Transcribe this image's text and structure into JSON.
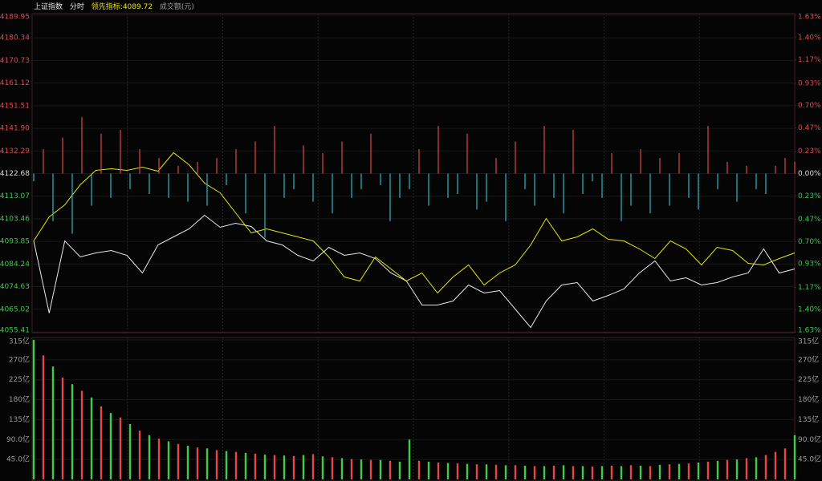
{
  "header": {
    "title": "上证指数",
    "mode": "分时",
    "indicator_label": "领先指标:",
    "indicator_value": 4089.72,
    "volume_label": "成交额(元)"
  },
  "chart_data": [
    {
      "type": "line",
      "ylim": [
        4055.41,
        4189.95
      ],
      "yticks": [
        4189.95,
        4180.34,
        4170.73,
        4161.12,
        4151.51,
        {
          "value": 4141.9,
          "label": "4141.90"
        },
        4132.29,
        4122.68,
        4113.07,
        4103.46,
        4093.85,
        4084.24,
        4074.63,
        4065.02,
        4055.41
      ],
      "y2lim": [
        -1.63,
        1.63
      ],
      "y2ticks": [
        {
          "value": 1.63,
          "label": "1.63%"
        },
        {
          "value": 1.4,
          "label": "1.40%"
        },
        {
          "value": 1.17,
          "label": "1.17%"
        },
        {
          "value": 0.93,
          "label": "0.93%"
        },
        {
          "value": 0.7,
          "label": "0.70%"
        },
        {
          "value": 0.47,
          "label": "0.47%"
        },
        {
          "value": 0.23,
          "label": "0.23%"
        },
        {
          "value": 0,
          "label": "0.00%"
        },
        {
          "value": -0.23,
          "label": "0.23%"
        },
        {
          "value": -0.47,
          "label": "0.47%"
        },
        {
          "value": -0.7,
          "label": "0.70%"
        },
        {
          "value": -0.93,
          "label": "0.93%"
        },
        {
          "value": -1.17,
          "label": "1.17%"
        },
        {
          "value": -1.4,
          "label": "1.40%"
        },
        {
          "value": -1.63,
          "label": "1.63%"
        }
      ],
      "grid": true,
      "up_color": "#e04848",
      "down_color": "#2fb8c2",
      "series": [
        {
          "color": "#e8e8e8",
          "values": [
            4094.07,
            4063.42,
            4094.07,
            4087.26,
            4088.96,
            4089.98,
            4087.94,
            4080.45,
            4092.37,
            4095.77,
            4099.18,
            4104.97,
            4099.86,
            4101.56,
            4100.2,
            4094.07,
            4092.37,
            4087.94,
            4085.55,
            4091.34,
            4087.94,
            4088.96,
            4086.58,
            4080.45,
            4077.04,
            4066.82,
            4066.82,
            4068.52,
            4075.34,
            4071.93,
            4072.95,
            4065.12,
            4057.28,
            4068.52,
            4075.34,
            4076.36,
            4068.52,
            4070.91,
            4073.63,
            4080.45,
            4085.55,
            4077.04,
            4078.4,
            4075.34,
            4076.36,
            4078.74,
            4080.45,
            4090.66,
            4080.45,
            4082.15
          ]
        },
        {
          "color": "#e6e600",
          "values": [
            4094.07,
            4104.29,
            4109.4,
            4117.91,
            4124.04,
            4124.72,
            4124.04,
            4125.4,
            4123.7,
            4131.54,
            4126.43,
            4118.59,
            4114.51,
            4105.99,
            4097.48,
            4099.18,
            4097.48,
            4095.77,
            4094.07,
            4087.26,
            4078.74,
            4077.04,
            4087.26,
            4082.15,
            4077.04,
            4080.45,
            4071.93,
            4078.74,
            4083.85,
            4075.34,
            4080.45,
            4083.85,
            4092.37,
            4103.61,
            4094.07,
            4095.77,
            4099.18,
            4094.75,
            4094.07,
            4090.66,
            4086.58,
            4094.07,
            4090.66,
            4083.85,
            4091.34,
            4089.98,
            4084.53,
            4083.85,
            4086.58,
            4088.96
          ]
        },
        {
          "type": "bar",
          "axis": "y2",
          "values": [
            -0.08,
            0.25,
            -0.49,
            0.37,
            -0.62,
            0.58,
            -0.33,
            0.41,
            -0.25,
            0.45,
            -0.16,
            0.25,
            -0.21,
            0.16,
            -0.25,
            0.08,
            -0.29,
            0.12,
            -0.33,
            0.16,
            -0.12,
            0.25,
            -0.41,
            0.33,
            -0.66,
            0.49,
            -0.25,
            -0.16,
            0.29,
            -0.29,
            0.21,
            -0.41,
            0.33,
            -0.25,
            -0.16,
            0.41,
            -0.12,
            -0.49,
            -0.25,
            -0.16,
            0.25,
            -0.33,
            0.49,
            -0.25,
            -0.21,
            0.41,
            -0.37,
            -0.29,
            0.16,
            -0.49,
            0.33,
            -0.16,
            -0.33,
            0.49,
            -0.25,
            -0.41,
            0.45,
            -0.21,
            -0.08,
            -0.25,
            0.21,
            -0.49,
            -0.33,
            0.25,
            -0.41,
            0.16,
            -0.33,
            0.21,
            -0.25,
            -0.37,
            0.49,
            -0.16,
            0.12,
            -0.29,
            0.08,
            -0.16,
            -0.21,
            0.08,
            0.16,
            0.12
          ]
        }
      ]
    },
    {
      "type": "bar",
      "ylim": [
        0,
        315
      ],
      "yticks": [
        {
          "value": 315,
          "label": "315亿"
        },
        {
          "value": 270,
          "label": "270亿"
        },
        {
          "value": 225,
          "label": "225亿"
        },
        {
          "value": 180,
          "label": "180亿"
        },
        {
          "value": 135,
          "label": "135亿"
        },
        {
          "value": 90,
          "label": "90.0亿"
        },
        {
          "value": 45,
          "label": "45.0亿"
        }
      ],
      "grid": true,
      "values": [
        315,
        280,
        255,
        230,
        215,
        200,
        185,
        165,
        150,
        140,
        125,
        110,
        100,
        92,
        86,
        80,
        76,
        72,
        70,
        66,
        64,
        62,
        60,
        58,
        56,
        55,
        54,
        53,
        55,
        57,
        52,
        50,
        48,
        46,
        45,
        44,
        44,
        42,
        40,
        90,
        42,
        40,
        38,
        37,
        36,
        35,
        34,
        34,
        33,
        32,
        32,
        31,
        30,
        30,
        31,
        32,
        30,
        30,
        29,
        30,
        31,
        30,
        32,
        31,
        30,
        33,
        34,
        35,
        36,
        38,
        40,
        42,
        44,
        45,
        48,
        50,
        55,
        62,
        70,
        100
      ],
      "colors": [
        "#3dcc4a",
        "#e84545",
        "#3dcc4a",
        "#e84545",
        "#3dcc4a",
        "#e84545",
        "#3dcc4a",
        "#e84545",
        "#3dcc4a",
        "#e84545",
        "#3dcc4a",
        "#e84545",
        "#3dcc4a",
        "#e84545",
        "#3dcc4a",
        "#e84545",
        "#3dcc4a",
        "#e84545",
        "#3dcc4a",
        "#e84545",
        "#3dcc4a",
        "#e84545",
        "#3dcc4a",
        "#e84545",
        "#3dcc4a",
        "#e84545",
        "#3dcc4a",
        "#e84545",
        "#3dcc4a",
        "#e84545",
        "#3dcc4a",
        "#e84545",
        "#3dcc4a",
        "#e84545",
        "#3dcc4a",
        "#e84545",
        "#3dcc4a",
        "#e84545",
        "#3dcc4a",
        "#3dcc4a",
        "#e84545",
        "#3dcc4a",
        "#e84545",
        "#3dcc4a",
        "#e84545",
        "#3dcc4a",
        "#e84545",
        "#3dcc4a",
        "#e84545",
        "#3dcc4a",
        "#e84545",
        "#3dcc4a",
        "#e84545",
        "#3dcc4a",
        "#e84545",
        "#3dcc4a",
        "#e84545",
        "#3dcc4a",
        "#e84545",
        "#3dcc4a",
        "#e84545",
        "#3dcc4a",
        "#e84545",
        "#3dcc4a",
        "#e84545",
        "#3dcc4a",
        "#e84545",
        "#3dcc4a",
        "#e84545",
        "#3dcc4a",
        "#e84545",
        "#3dcc4a",
        "#e84545",
        "#3dcc4a",
        "#e84545",
        "#3dcc4a",
        "#e84545",
        "#e84545",
        "#e84545",
        "#3dcc4a"
      ]
    }
  ]
}
